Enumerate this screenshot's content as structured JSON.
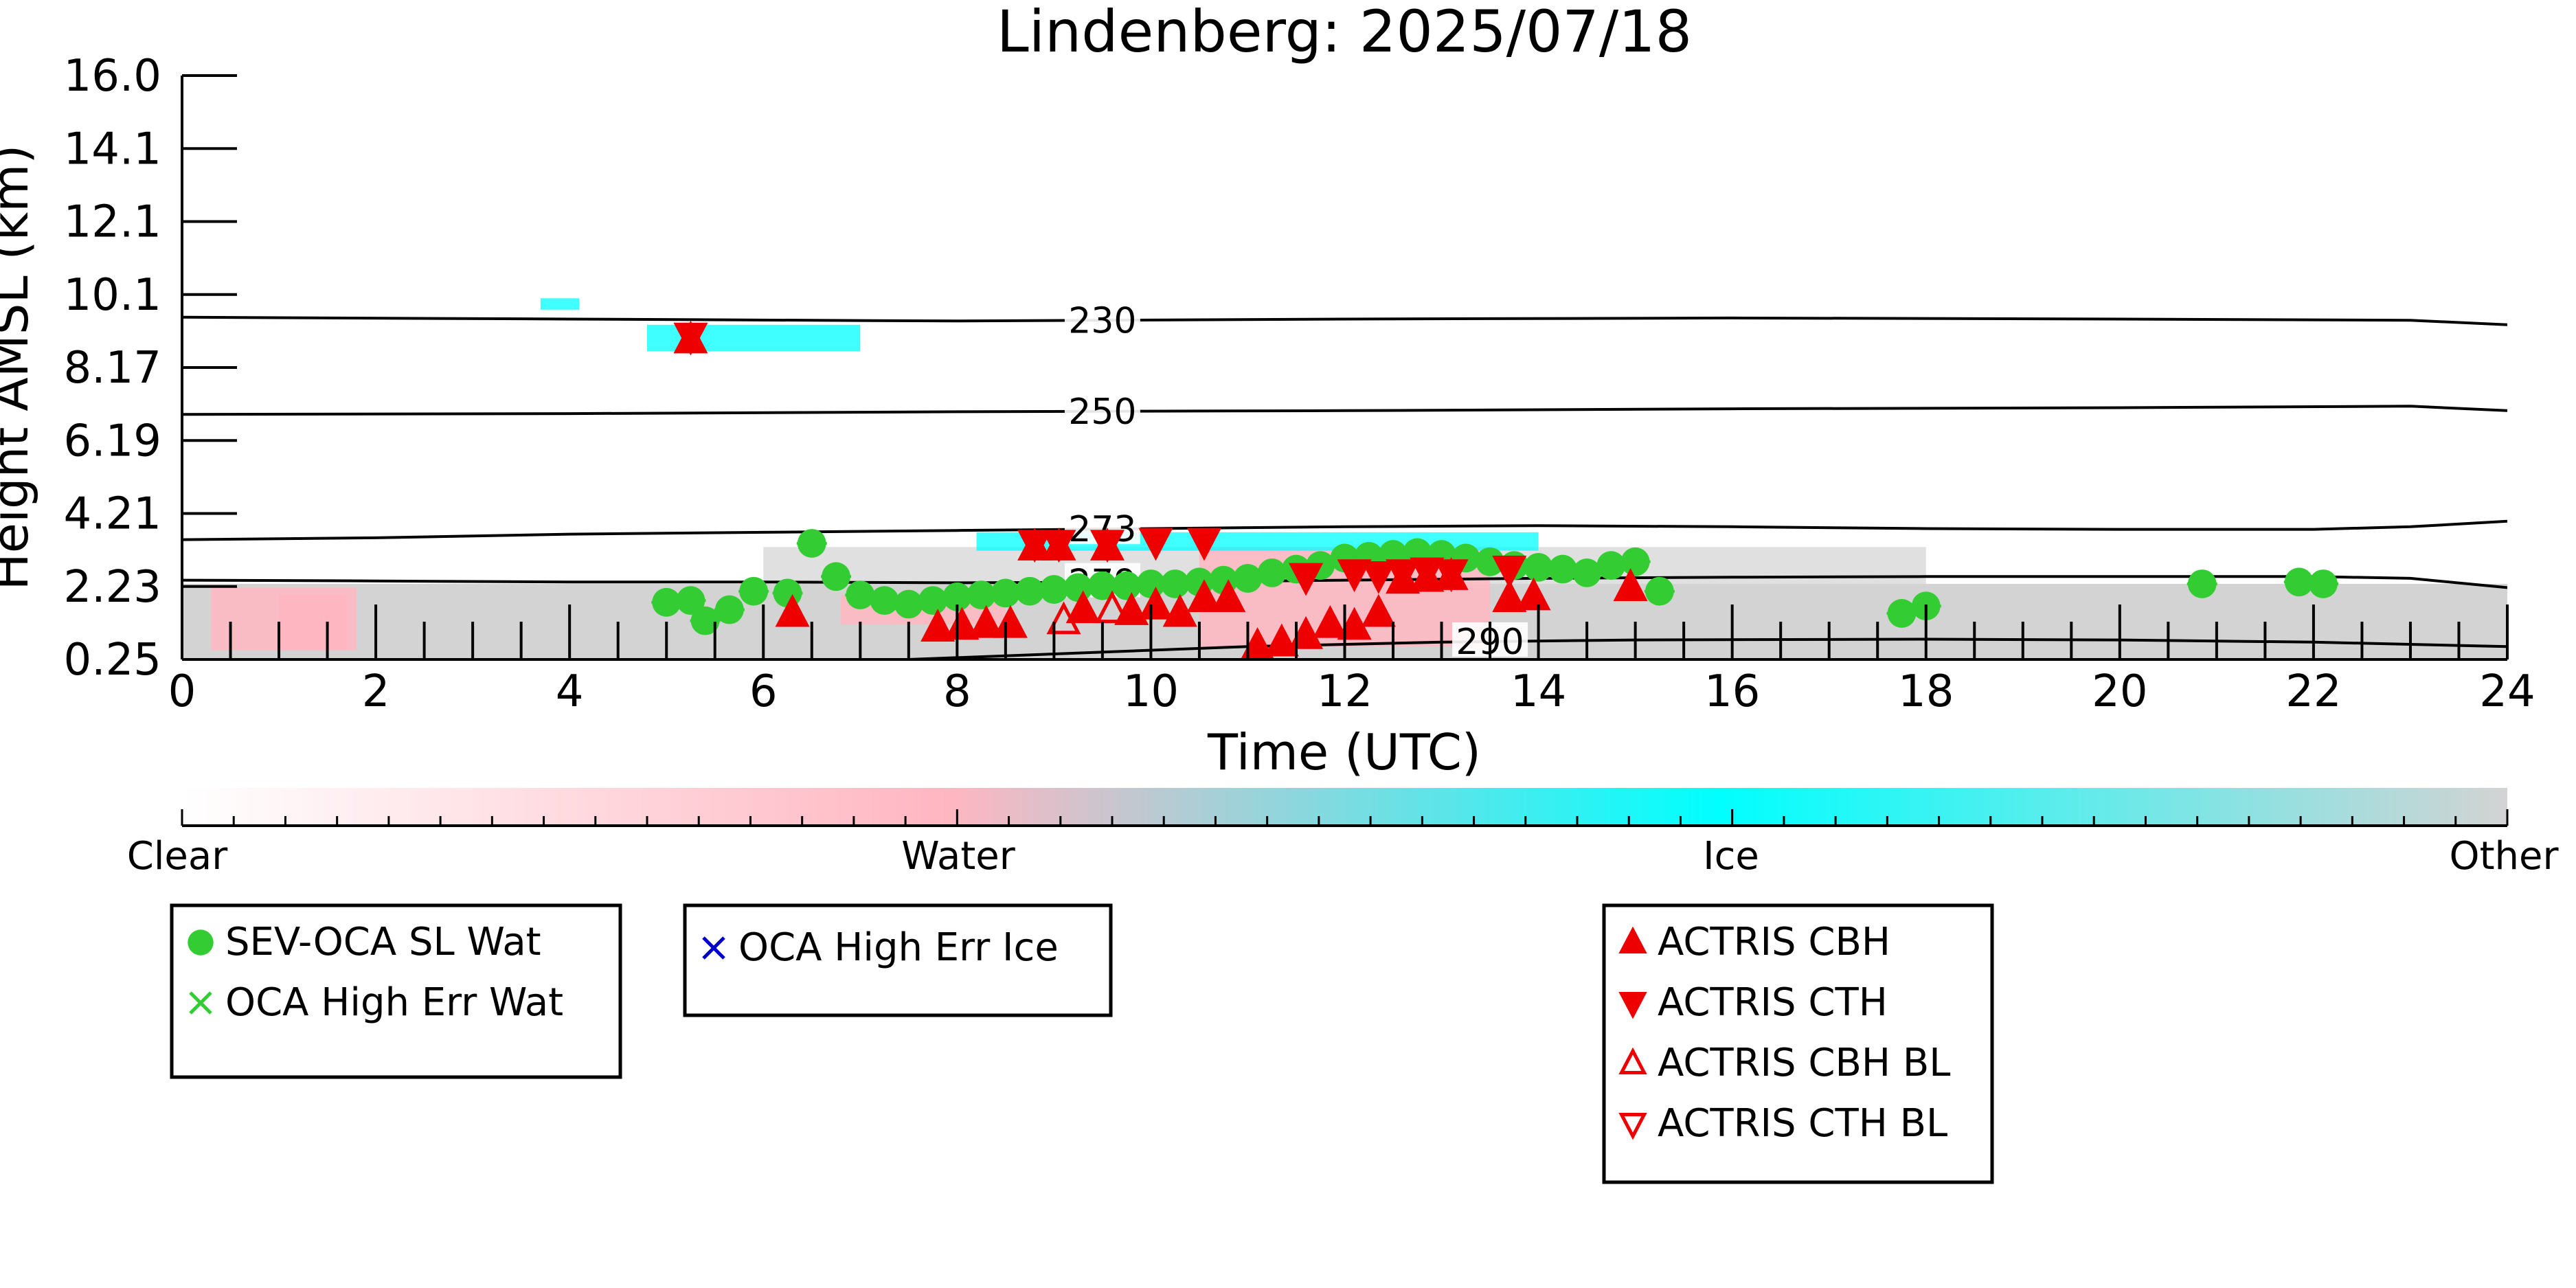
{
  "chart_data": {
    "type": "scatter",
    "title": "Lindenberg: 2025/07/18",
    "xlabel": "Time (UTC)",
    "ylabel": "Height AMSL (km)",
    "xlim": [
      0,
      24
    ],
    "ylim": [
      0.25,
      16.0
    ],
    "x_ticks": [
      "0",
      "2",
      "4",
      "6",
      "8",
      "10",
      "12",
      "14",
      "16",
      "18",
      "20",
      "22",
      "24"
    ],
    "y_ticks": [
      "0.25",
      "2.23",
      "4.21",
      "6.19",
      "8.17",
      "10.1",
      "12.1",
      "14.1",
      "16.0"
    ],
    "y_tick_values": [
      0.25,
      2.23,
      4.21,
      6.19,
      8.17,
      10.1,
      12.1,
      14.1,
      16.0
    ],
    "grid": false,
    "colorbar": {
      "labels": [
        "Clear",
        "Water",
        "Ice",
        "Other"
      ],
      "colors": [
        "#ffffff",
        "#ffb6c1",
        "#00ffff",
        "#d3d3d3"
      ]
    },
    "temperature_contours": [
      {
        "label": "230",
        "label_x": 9.5,
        "points": [
          [
            0,
            9.5
          ],
          [
            4,
            9.45
          ],
          [
            8,
            9.4
          ],
          [
            12,
            9.45
          ],
          [
            16,
            9.48
          ],
          [
            20,
            9.45
          ],
          [
            23,
            9.42
          ],
          [
            24,
            9.3
          ]
        ]
      },
      {
        "label": "250",
        "label_x": 9.5,
        "points": [
          [
            0,
            6.9
          ],
          [
            4,
            6.92
          ],
          [
            8,
            6.97
          ],
          [
            12,
            7.0
          ],
          [
            16,
            7.05
          ],
          [
            20,
            7.08
          ],
          [
            23,
            7.12
          ],
          [
            24,
            7.0
          ]
        ]
      },
      {
        "label": "273",
        "label_x": 9.5,
        "points": [
          [
            0,
            3.5
          ],
          [
            2,
            3.55
          ],
          [
            4,
            3.65
          ],
          [
            6,
            3.7
          ],
          [
            8,
            3.75
          ],
          [
            10,
            3.8
          ],
          [
            12,
            3.85
          ],
          [
            14,
            3.88
          ],
          [
            16,
            3.85
          ],
          [
            18,
            3.8
          ],
          [
            20,
            3.78
          ],
          [
            22,
            3.78
          ],
          [
            23,
            3.85
          ],
          [
            24,
            4.0
          ]
        ]
      },
      {
        "label": "279",
        "label_x": 9.5,
        "points": [
          [
            0,
            2.4
          ],
          [
            2,
            2.38
          ],
          [
            4,
            2.35
          ],
          [
            6,
            2.35
          ],
          [
            8,
            2.33
          ],
          [
            10,
            2.35
          ],
          [
            12,
            2.4
          ],
          [
            14,
            2.45
          ],
          [
            16,
            2.48
          ],
          [
            18,
            2.5
          ],
          [
            20,
            2.5
          ],
          [
            22,
            2.5
          ],
          [
            23,
            2.45
          ],
          [
            24,
            2.2
          ]
        ]
      },
      {
        "label": "290",
        "label_x": 13.5,
        "points": [
          [
            7.5,
            0.25
          ],
          [
            9,
            0.4
          ],
          [
            11,
            0.6
          ],
          [
            13,
            0.72
          ],
          [
            15,
            0.78
          ],
          [
            18,
            0.8
          ],
          [
            20,
            0.78
          ],
          [
            22,
            0.72
          ],
          [
            24,
            0.6
          ]
        ]
      }
    ],
    "series": [
      {
        "name": "SEV-OCA SL Wat",
        "marker": "circle",
        "color": "#33cc33",
        "x": [
          5.0,
          5.25,
          5.4,
          5.65,
          5.9,
          6.25,
          6.5,
          6.75,
          7.0,
          7.25,
          7.5,
          7.75,
          8.0,
          8.25,
          8.5,
          8.75,
          9.0,
          9.25,
          9.5,
          9.75,
          10.0,
          10.25,
          10.5,
          10.75,
          11.0,
          11.25,
          11.5,
          11.75,
          12.0,
          12.25,
          12.5,
          12.75,
          13.0,
          13.25,
          13.5,
          13.75,
          14.0,
          14.25,
          14.5,
          14.75,
          15.0,
          15.25,
          17.75,
          18.0,
          20.85,
          21.85,
          22.1
        ],
        "y": [
          1.8,
          1.85,
          1.3,
          1.6,
          2.1,
          2.05,
          3.4,
          2.5,
          2.0,
          1.85,
          1.75,
          1.85,
          1.95,
          2.0,
          2.05,
          2.1,
          2.15,
          2.2,
          2.25,
          2.25,
          2.3,
          2.3,
          2.35,
          2.4,
          2.45,
          2.6,
          2.7,
          2.8,
          3.0,
          3.05,
          3.1,
          3.15,
          3.1,
          3.0,
          2.9,
          2.8,
          2.75,
          2.7,
          2.6,
          2.8,
          2.9,
          2.1,
          1.5,
          1.7,
          2.3,
          2.35,
          2.3
        ]
      },
      {
        "name": "OCA High Err Wat",
        "marker": "x",
        "color": "#33cc33",
        "x": [],
        "y": []
      },
      {
        "name": "OCA High Err Ice",
        "marker": "x",
        "color": "#0000cc",
        "x": [],
        "y": []
      },
      {
        "name": "ACTRIS CBH",
        "marker": "triangle-up",
        "color": "#ee0000",
        "x": [
          5.25,
          6.3,
          7.8,
          8.05,
          8.3,
          8.55,
          8.8,
          9.05,
          9.3,
          9.55,
          9.8,
          10.05,
          10.3,
          10.55,
          10.8,
          11.1,
          11.35,
          11.6,
          11.85,
          12.1,
          12.35,
          12.6,
          12.85,
          13.1,
          13.7,
          13.95,
          14.95
        ],
        "y": [
          8.9,
          1.5,
          1.1,
          1.15,
          1.2,
          1.2,
          3.3,
          3.3,
          1.6,
          3.3,
          1.55,
          1.7,
          1.5,
          1.9,
          1.9,
          0.6,
          0.7,
          0.9,
          1.2,
          1.15,
          1.5,
          2.4,
          2.45,
          2.5,
          1.9,
          1.95,
          2.2
        ]
      },
      {
        "name": "ACTRIS CTH",
        "marker": "triangle-down",
        "color": "#ee0000",
        "x": [
          5.25,
          8.8,
          9.05,
          9.55,
          10.05,
          10.55,
          11.6,
          12.1,
          12.35,
          12.6,
          12.85,
          13.1,
          13.7
        ],
        "y": [
          9.0,
          3.4,
          3.4,
          3.4,
          3.45,
          3.45,
          2.5,
          2.6,
          2.55,
          2.6,
          2.65,
          2.6,
          2.7
        ]
      },
      {
        "name": "ACTRIS CBH BL",
        "marker": "triangle-up-open",
        "color": "#ee0000",
        "x": [
          9.1,
          9.6
        ],
        "y": [
          1.3,
          1.6
        ]
      },
      {
        "name": "ACTRIS CTH BL",
        "marker": "triangle-down-open",
        "color": "#ee0000",
        "x": [],
        "y": []
      }
    ],
    "legends": [
      {
        "position": "bottom-left",
        "entries": [
          "SEV-OCA SL Wat",
          "OCA High Err Wat"
        ]
      },
      {
        "position": "bottom-center-left",
        "entries": [
          "OCA High Err Ice"
        ]
      },
      {
        "position": "bottom-center-right",
        "entries": [
          "ACTRIS CBH",
          "ACTRIS CTH",
          "ACTRIS CBH BL",
          "ACTRIS CTH BL"
        ]
      }
    ]
  }
}
